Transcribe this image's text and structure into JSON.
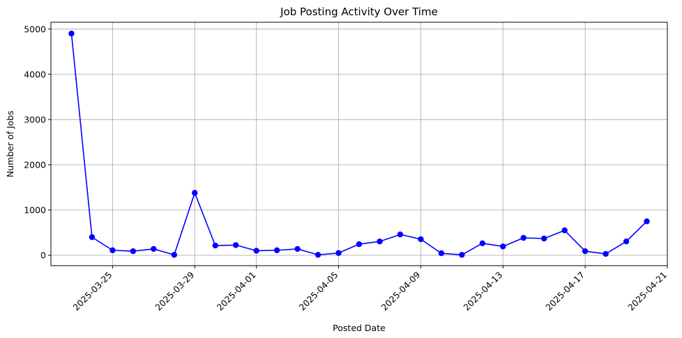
{
  "chart_data": {
    "type": "line",
    "title": "Job Posting Activity Over Time",
    "xlabel": "Posted Date",
    "ylabel": "Number of Jobs",
    "x_tick_labels": [
      "2025-03-25",
      "2025-03-29",
      "2025-04-01",
      "2025-04-05",
      "2025-04-09",
      "2025-04-13",
      "2025-04-17",
      "2025-04-21"
    ],
    "y_tick_labels": [
      "0",
      "1000",
      "2000",
      "3000",
      "4000",
      "5000"
    ],
    "ylim": [
      -230,
      5150
    ],
    "xlim": [
      "2025-03-22",
      "2025-04-21"
    ],
    "grid": true,
    "line_color": "#0000ff",
    "x": [
      "2025-03-23",
      "2025-03-24",
      "2025-03-25",
      "2025-03-26",
      "2025-03-27",
      "2025-03-28",
      "2025-03-29",
      "2025-03-30",
      "2025-03-31",
      "2025-04-01",
      "2025-04-02",
      "2025-04-03",
      "2025-04-04",
      "2025-04-05",
      "2025-04-06",
      "2025-04-07",
      "2025-04-08",
      "2025-04-09",
      "2025-04-10",
      "2025-04-11",
      "2025-04-12",
      "2025-04-13",
      "2025-04-14",
      "2025-04-15",
      "2025-04-16",
      "2025-04-17",
      "2025-04-18",
      "2025-04-19",
      "2025-04-20"
    ],
    "y": [
      4900,
      400,
      110,
      90,
      140,
      10,
      1380,
      215,
      225,
      100,
      110,
      140,
      10,
      50,
      245,
      305,
      460,
      355,
      45,
      10,
      265,
      195,
      385,
      370,
      550,
      90,
      30,
      305,
      750
    ]
  }
}
